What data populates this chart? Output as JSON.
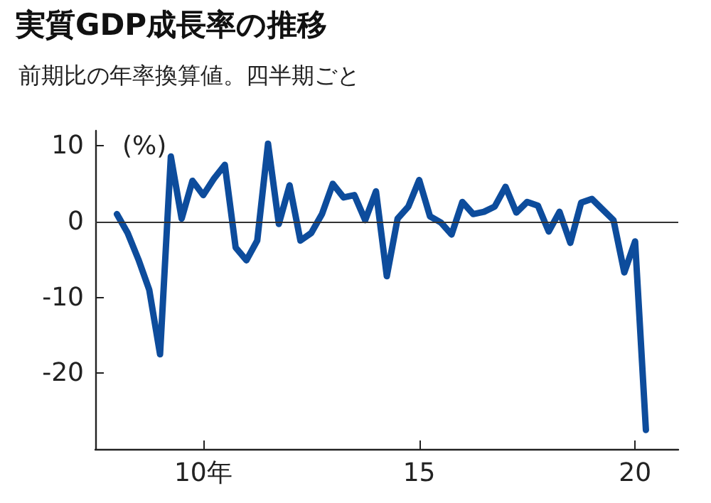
{
  "chart_data": {
    "type": "line",
    "title": "実質GDP成長率の推移",
    "subtitle": "前期比の年率換算値。四半期ごと",
    "ylabel": "(%)",
    "x": [
      8,
      8.25,
      8.5,
      8.75,
      9,
      9.25,
      9.5,
      9.75,
      10,
      10.25,
      10.5,
      10.75,
      11,
      11.25,
      11.5,
      11.75,
      12,
      12.25,
      12.5,
      12.75,
      13,
      13.25,
      13.5,
      13.75,
      14,
      14.25,
      14.5,
      14.75,
      15,
      15.25,
      15.5,
      15.75,
      16,
      16.25,
      16.5,
      16.75,
      17,
      17.25,
      17.5,
      17.75,
      18,
      18.25,
      18.5,
      18.75,
      19,
      19.25,
      19.5,
      19.75,
      20,
      20.25
    ],
    "series": [
      {
        "color": "#0d4c9c",
        "values": [
          1.0,
          -1.5,
          -5.0,
          -9.0,
          -17.5,
          8.6,
          0.4,
          5.4,
          3.5,
          5.7,
          7.5,
          -3.4,
          -5.1,
          -2.5,
          10.3,
          -0.3,
          4.8,
          -2.5,
          -1.5,
          1.0,
          5.0,
          3.2,
          3.5,
          0.2,
          4.0,
          -7.2,
          0.4,
          2.0,
          5.5,
          0.7,
          -0.1,
          -1.7,
          2.6,
          1.0,
          1.3,
          2.0,
          4.6,
          1.2,
          2.6,
          2.1,
          -1.3,
          1.3,
          -2.8,
          2.5,
          3.0,
          1.6,
          0.2,
          -6.7,
          -2.6,
          -27.5
        ]
      }
    ],
    "xlim": [
      7.5,
      21
    ],
    "xticks": [
      {
        "value": 10,
        "label": "10年"
      },
      15,
      20
    ],
    "ylim": [
      -30,
      12
    ],
    "yticks": [
      -20,
      -10,
      0,
      10
    ],
    "ref_lines": [
      {
        "axis": "y",
        "value": 0,
        "label": null
      }
    ],
    "grid": false,
    "marker": "none",
    "line_style": "solid"
  }
}
